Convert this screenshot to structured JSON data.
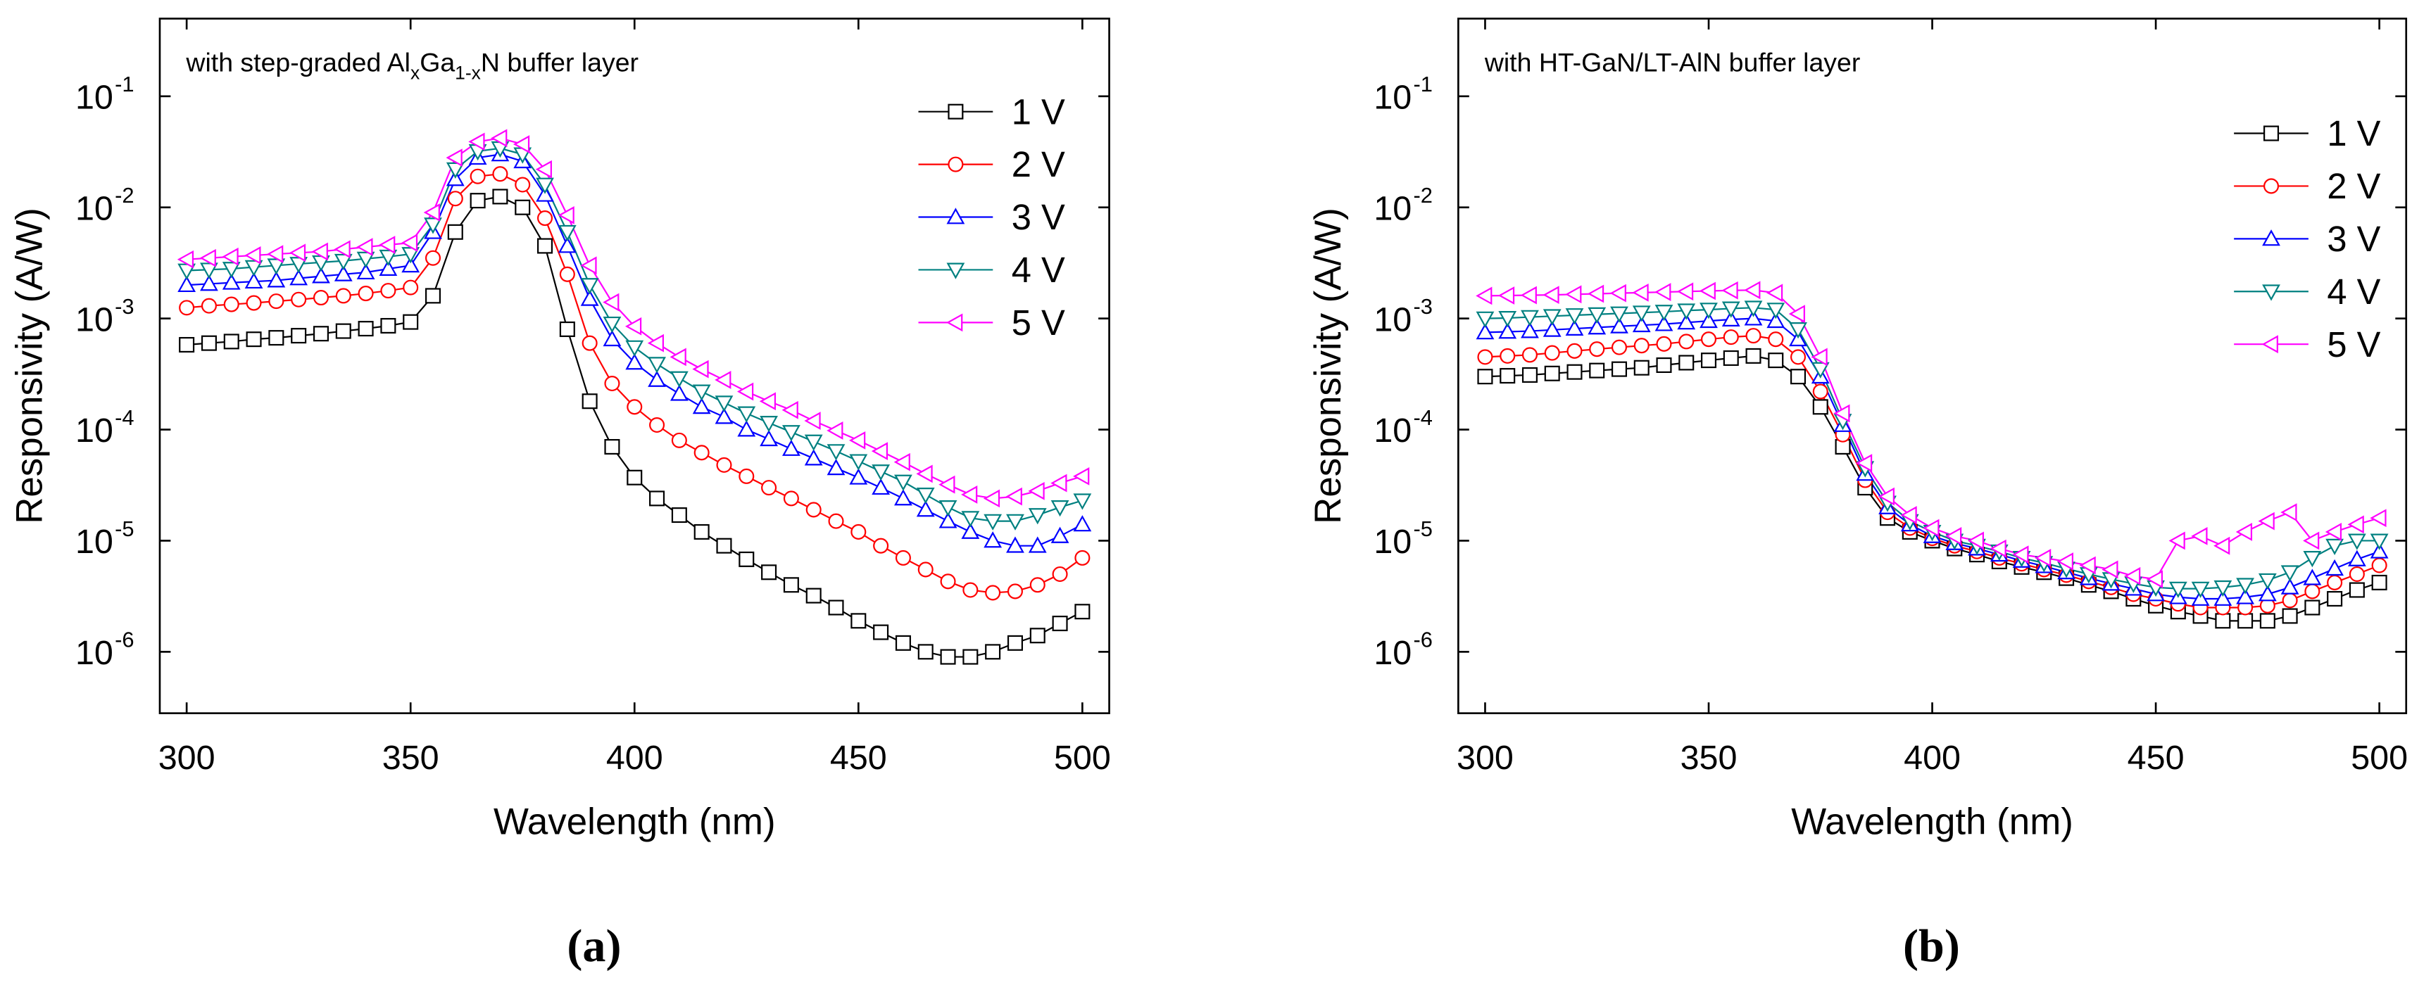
{
  "chart_data": [
    {
      "type": "line",
      "panel_label": "(a)",
      "annotation_parts": [
        {
          "text": "with step-graded Al"
        },
        {
          "text": "x",
          "sub": true
        },
        {
          "text": "Ga"
        },
        {
          "text": "1-x",
          "sub": true
        },
        {
          "text": "N buffer layer"
        }
      ],
      "x_label": "Wavelength (nm)",
      "y_label": "Responsivity (A/W)",
      "ylog": true,
      "legend": "upper right",
      "xlim": [
        294,
        506
      ],
      "xticks": [
        300,
        350,
        400,
        450,
        500
      ],
      "ylim": [
        2.8e-07,
        0.5
      ],
      "yticks": [
        {
          "value": 1e-06,
          "label": "10",
          "exponent": "-6"
        },
        {
          "value": 1e-05,
          "label": "10",
          "exponent": "-5"
        },
        {
          "value": 0.0001,
          "label": "10",
          "exponent": "-4"
        },
        {
          "value": 0.001,
          "label": "10",
          "exponent": "-3"
        },
        {
          "value": 0.01,
          "label": "10",
          "exponent": "-2"
        },
        {
          "value": 0.1,
          "label": "10",
          "exponent": "-1"
        }
      ],
      "x": [
        300,
        305,
        310,
        315,
        320,
        325,
        330,
        335,
        340,
        345,
        350,
        355,
        360,
        365,
        370,
        375,
        380,
        385,
        390,
        395,
        400,
        405,
        410,
        415,
        420,
        425,
        430,
        435,
        440,
        445,
        450,
        455,
        460,
        465,
        470,
        475,
        480,
        485,
        490,
        495,
        500
      ],
      "series": [
        {
          "name": "1 V",
          "color": "#000000",
          "marker": "square",
          "values": [
            0.00058,
            0.0006,
            0.00062,
            0.00065,
            0.00067,
            0.0007,
            0.00073,
            0.00077,
            0.00081,
            0.00086,
            0.00093,
            0.0016,
            0.006,
            0.0115,
            0.0125,
            0.01,
            0.0045,
            0.0008,
            0.00018,
            7e-05,
            3.7e-05,
            2.4e-05,
            1.7e-05,
            1.2e-05,
            9e-06,
            6.8e-06,
            5.2e-06,
            4e-06,
            3.2e-06,
            2.5e-06,
            1.9e-06,
            1.5e-06,
            1.2e-06,
            1e-06,
            9e-07,
            9e-07,
            1e-06,
            1.2e-06,
            1.4e-06,
            1.8e-06,
            2.3e-06
          ]
        },
        {
          "name": "2 V",
          "color": "#ff0000",
          "marker": "circle",
          "values": [
            0.00125,
            0.0013,
            0.00134,
            0.00138,
            0.00143,
            0.00148,
            0.00154,
            0.0016,
            0.00168,
            0.00178,
            0.0019,
            0.0035,
            0.012,
            0.019,
            0.02,
            0.016,
            0.008,
            0.0025,
            0.0006,
            0.00026,
            0.00016,
            0.00011,
            8e-05,
            6.2e-05,
            4.8e-05,
            3.8e-05,
            3e-05,
            2.4e-05,
            1.9e-05,
            1.5e-05,
            1.2e-05,
            9e-06,
            7e-06,
            5.5e-06,
            4.3e-06,
            3.6e-06,
            3.4e-06,
            3.5e-06,
            4e-06,
            5e-06,
            7e-06
          ]
        },
        {
          "name": "3 V",
          "color": "#0000ff",
          "marker": "triangle-up",
          "values": [
            0.002,
            0.00205,
            0.0021,
            0.00215,
            0.0022,
            0.0023,
            0.0024,
            0.0025,
            0.0026,
            0.0028,
            0.003,
            0.006,
            0.018,
            0.028,
            0.03,
            0.026,
            0.013,
            0.0045,
            0.0015,
            0.00065,
            0.0004,
            0.00028,
            0.00021,
            0.00016,
            0.00013,
            0.0001,
            8.2e-05,
            6.7e-05,
            5.5e-05,
            4.5e-05,
            3.7e-05,
            3e-05,
            2.4e-05,
            1.9e-05,
            1.5e-05,
            1.2e-05,
            1e-05,
            9e-06,
            9e-06,
            1.1e-05,
            1.4e-05
          ]
        },
        {
          "name": "4 V",
          "color": "#008080",
          "marker": "triangle-down",
          "values": [
            0.0027,
            0.00275,
            0.0028,
            0.0029,
            0.003,
            0.0031,
            0.0032,
            0.0033,
            0.00345,
            0.0036,
            0.0038,
            0.007,
            0.022,
            0.032,
            0.034,
            0.03,
            0.016,
            0.006,
            0.002,
            0.0009,
            0.00055,
            0.00039,
            0.00029,
            0.00022,
            0.000175,
            0.00014,
            0.000115,
            9.5e-05,
            7.8e-05,
            6.4e-05,
            5.2e-05,
            4.2e-05,
            3.4e-05,
            2.6e-05,
            2e-05,
            1.6e-05,
            1.5e-05,
            1.5e-05,
            1.7e-05,
            2e-05,
            2.3e-05
          ]
        },
        {
          "name": "5 V",
          "color": "#ff00ff",
          "marker": "triangle-left",
          "values": [
            0.0034,
            0.0035,
            0.0036,
            0.0037,
            0.0038,
            0.0039,
            0.004,
            0.0042,
            0.0044,
            0.0046,
            0.0048,
            0.009,
            0.028,
            0.039,
            0.042,
            0.037,
            0.022,
            0.0085,
            0.003,
            0.0014,
            0.00085,
            0.0006,
            0.00045,
            0.00035,
            0.00028,
            0.00022,
            0.00018,
            0.00015,
            0.00012,
            9.8e-05,
            8e-05,
            6.4e-05,
            5.1e-05,
            4e-05,
            3.2e-05,
            2.6e-05,
            2.4e-05,
            2.5e-05,
            2.8e-05,
            3.3e-05,
            3.8e-05
          ]
        }
      ]
    },
    {
      "type": "line",
      "panel_label": "(b)",
      "annotation_parts": [
        {
          "text": "with HT-GaN/LT-AlN buffer layer"
        }
      ],
      "x_label": "Wavelength (nm)",
      "y_label": "Responsivity (A/W)",
      "ylog": true,
      "legend": "upper right",
      "xlim": [
        294,
        506
      ],
      "xticks": [
        300,
        350,
        400,
        450,
        500
      ],
      "ylim": [
        2.8e-07,
        0.5
      ],
      "yticks": [
        {
          "value": 1e-06,
          "label": "10",
          "exponent": "-6"
        },
        {
          "value": 1e-05,
          "label": "10",
          "exponent": "-5"
        },
        {
          "value": 0.0001,
          "label": "10",
          "exponent": "-4"
        },
        {
          "value": 0.001,
          "label": "10",
          "exponent": "-3"
        },
        {
          "value": 0.01,
          "label": "10",
          "exponent": "-2"
        },
        {
          "value": 0.1,
          "label": "10",
          "exponent": "-1"
        }
      ],
      "x": [
        300,
        305,
        310,
        315,
        320,
        325,
        330,
        335,
        340,
        345,
        350,
        355,
        360,
        365,
        370,
        375,
        380,
        385,
        390,
        395,
        400,
        405,
        410,
        415,
        420,
        425,
        430,
        435,
        440,
        445,
        450,
        455,
        460,
        465,
        470,
        475,
        480,
        485,
        490,
        495,
        500
      ],
      "series": [
        {
          "name": "1 V",
          "color": "#000000",
          "marker": "square",
          "values": [
            0.0003,
            0.000305,
            0.00031,
            0.00032,
            0.00033,
            0.00034,
            0.00035,
            0.00036,
            0.00038,
            0.0004,
            0.00042,
            0.00044,
            0.00046,
            0.00042,
            0.0003,
            0.00016,
            7e-05,
            3e-05,
            1.6e-05,
            1.2e-05,
            1e-05,
            8.5e-06,
            7.5e-06,
            6.5e-06,
            5.8e-06,
            5.2e-06,
            4.6e-06,
            4e-06,
            3.5e-06,
            3e-06,
            2.6e-06,
            2.3e-06,
            2.1e-06,
            1.9e-06,
            1.9e-06,
            1.9e-06,
            2.1e-06,
            2.5e-06,
            3e-06,
            3.6e-06,
            4.2e-06
          ]
        },
        {
          "name": "2 V",
          "color": "#ff0000",
          "marker": "circle",
          "values": [
            0.00045,
            0.00046,
            0.00047,
            0.00049,
            0.00051,
            0.00053,
            0.00055,
            0.00057,
            0.00059,
            0.00062,
            0.00065,
            0.00068,
            0.0007,
            0.00065,
            0.00045,
            0.00022,
            9e-05,
            3.5e-05,
            1.8e-05,
            1.3e-05,
            1.05e-05,
            9e-06,
            8e-06,
            7e-06,
            6.2e-06,
            5.5e-06,
            4.9e-06,
            4.3e-06,
            3.8e-06,
            3.3e-06,
            3e-06,
            2.7e-06,
            2.5e-06,
            2.5e-06,
            2.5e-06,
            2.6e-06,
            2.9e-06,
            3.5e-06,
            4.2e-06,
            5e-06,
            6e-06
          ]
        },
        {
          "name": "3 V",
          "color": "#0000ff",
          "marker": "triangle-up",
          "values": [
            0.00075,
            0.00076,
            0.00077,
            0.00079,
            0.00081,
            0.00083,
            0.00085,
            0.00087,
            0.00089,
            0.00092,
            0.00095,
            0.00098,
            0.001,
            0.00095,
            0.00065,
            0.0003,
            0.00011,
            4e-05,
            2e-05,
            1.4e-05,
            1.1e-05,
            9.5e-06,
            8.5e-06,
            7.5e-06,
            6.6e-06,
            5.9e-06,
            5.2e-06,
            4.6e-06,
            4.1e-06,
            3.7e-06,
            3.3e-06,
            3.1e-06,
            3e-06,
            3e-06,
            3.1e-06,
            3.3e-06,
            3.8e-06,
            4.6e-06,
            5.6e-06,
            6.8e-06,
            8e-06
          ]
        },
        {
          "name": "4 V",
          "color": "#008080",
          "marker": "triangle-down",
          "values": [
            0.001,
            0.00101,
            0.00103,
            0.00105,
            0.00107,
            0.00109,
            0.00111,
            0.00113,
            0.00115,
            0.00118,
            0.0012,
            0.00123,
            0.00125,
            0.0012,
            0.0008,
            0.00035,
            0.00012,
            4.5e-05,
            2.2e-05,
            1.5e-05,
            1.2e-05,
            1e-05,
            9e-06,
            8e-06,
            7e-06,
            6.3e-06,
            5.6e-06,
            5e-06,
            4.5e-06,
            4.1e-06,
            3.8e-06,
            3.7e-06,
            3.7e-06,
            3.8e-06,
            4e-06,
            4.4e-06,
            5.2e-06,
            7e-06,
            9e-06,
            1e-05,
            1e-05
          ]
        },
        {
          "name": "5 V",
          "color": "#ff00ff",
          "marker": "triangle-left",
          "values": [
            0.0016,
            0.00161,
            0.00162,
            0.00163,
            0.00165,
            0.00167,
            0.00169,
            0.00171,
            0.00173,
            0.00175,
            0.00177,
            0.00179,
            0.0018,
            0.0017,
            0.0011,
            0.00045,
            0.00014,
            5e-05,
            2.5e-05,
            1.7e-05,
            1.3e-05,
            1.1e-05,
            1e-05,
            8.5e-06,
            7.5e-06,
            7e-06,
            6.5e-06,
            6e-06,
            5.5e-06,
            4.8e-06,
            4.5e-06,
            1e-05,
            1.1e-05,
            9e-06,
            1.2e-05,
            1.5e-05,
            1.8e-05,
            1e-05,
            1.2e-05,
            1.4e-05,
            1.6e-05
          ]
        }
      ]
    }
  ]
}
